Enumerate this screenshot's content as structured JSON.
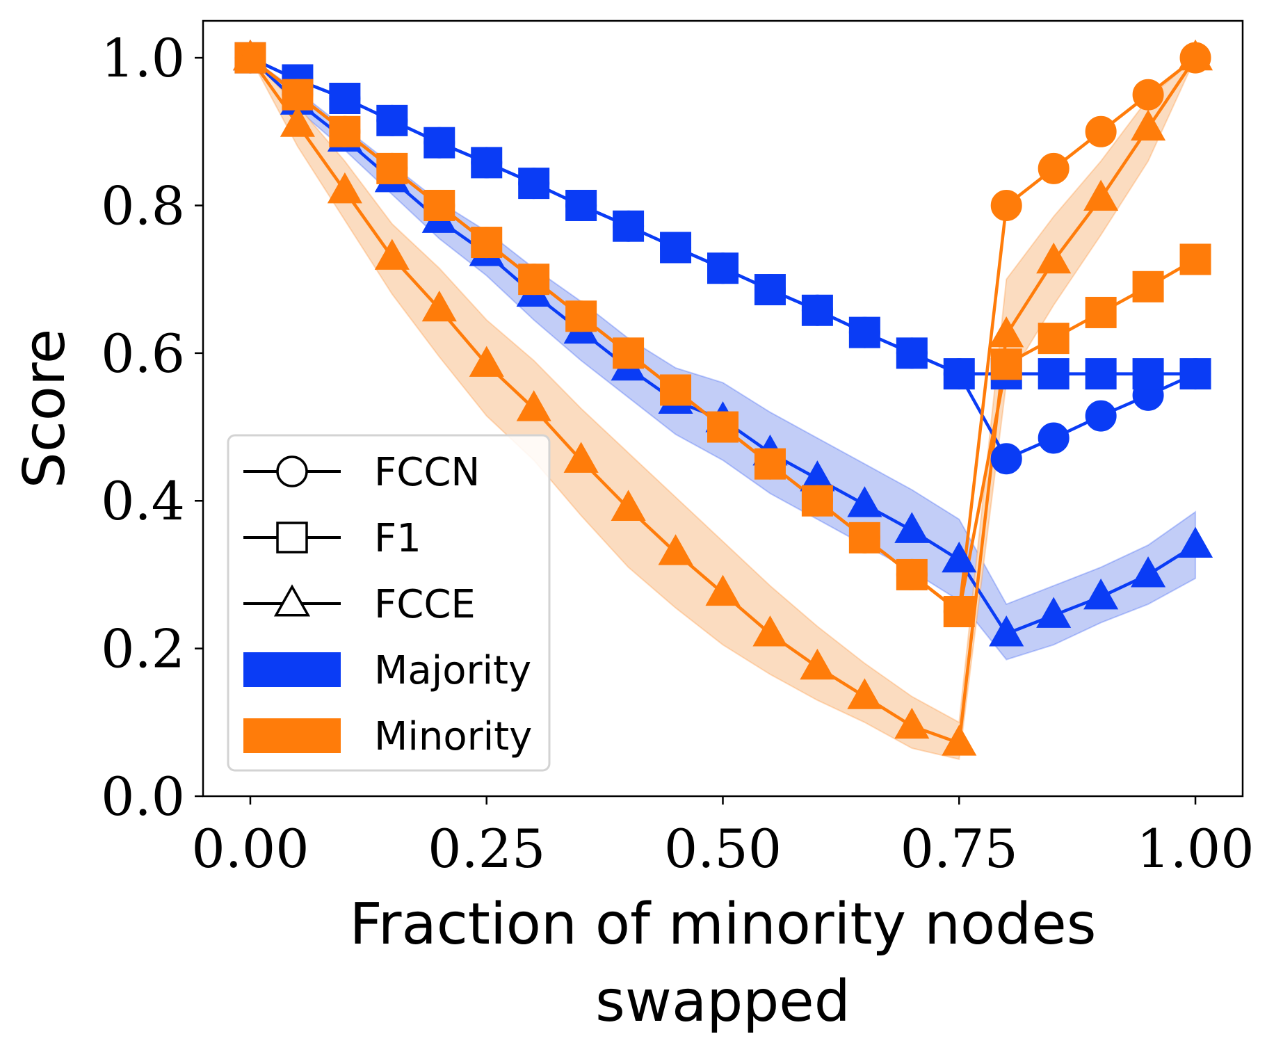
{
  "chart_data": {
    "type": "line",
    "title": "",
    "xlabel_lines": [
      "Fraction of minority nodes",
      "swapped"
    ],
    "ylabel": "Score",
    "xlim": [
      -0.05,
      1.05
    ],
    "ylim": [
      0.0,
      1.05
    ],
    "xticks": [
      0.0,
      0.25,
      0.5,
      0.75,
      1.0
    ],
    "xtick_labels": [
      "0.00",
      "0.25",
      "0.50",
      "0.75",
      "1.00"
    ],
    "yticks": [
      0.0,
      0.2,
      0.4,
      0.6,
      0.8,
      1.0
    ],
    "ytick_labels": [
      "0.0",
      "0.2",
      "0.4",
      "0.6",
      "0.8",
      "1.0"
    ],
    "grid": false,
    "legend_position": "lower-left",
    "colors": {
      "majority": "#0a3cf5",
      "minority": "#ff7c0a",
      "majority_band": "#c2cdf7",
      "minority_band": "#fbdcc0"
    },
    "x": [
      0.0,
      0.05,
      0.1,
      0.15,
      0.2,
      0.25,
      0.3,
      0.35,
      0.4,
      0.45,
      0.5,
      0.55,
      0.6,
      0.65,
      0.7,
      0.75,
      0.8,
      0.85,
      0.9,
      0.95,
      1.0
    ],
    "series": [
      {
        "name": "Majority FCCN",
        "group": "majority",
        "metric": "FCCN",
        "marker": "circle",
        "values": [
          1.0,
          0.97,
          0.945,
          0.915,
          0.885,
          0.858,
          0.83,
          0.8,
          0.772,
          0.743,
          0.715,
          0.686,
          0.658,
          0.628,
          0.6,
          0.572,
          0.457,
          0.485,
          0.515,
          0.543,
          0.572
        ]
      },
      {
        "name": "Majority F1",
        "group": "majority",
        "metric": "F1",
        "marker": "square",
        "values": [
          1.0,
          0.97,
          0.945,
          0.915,
          0.885,
          0.858,
          0.83,
          0.8,
          0.772,
          0.743,
          0.715,
          0.686,
          0.658,
          0.628,
          0.6,
          0.572,
          0.572,
          0.572,
          0.572,
          0.572,
          0.572
        ]
      },
      {
        "name": "Majority FCCE",
        "group": "majority",
        "metric": "FCCE",
        "marker": "triangle",
        "values": [
          1.0,
          0.94,
          0.89,
          0.835,
          0.78,
          0.735,
          0.68,
          0.63,
          0.58,
          0.535,
          0.51,
          0.465,
          0.43,
          0.395,
          0.36,
          0.32,
          0.22,
          0.245,
          0.27,
          0.3,
          0.34
        ],
        "band_lower": [
          1.0,
          0.93,
          0.875,
          0.815,
          0.755,
          0.705,
          0.645,
          0.59,
          0.54,
          0.49,
          0.455,
          0.41,
          0.375,
          0.34,
          0.305,
          0.265,
          0.185,
          0.205,
          0.235,
          0.26,
          0.295
        ],
        "band_upper": [
          1.0,
          0.955,
          0.905,
          0.855,
          0.805,
          0.765,
          0.715,
          0.67,
          0.62,
          0.58,
          0.56,
          0.52,
          0.485,
          0.45,
          0.415,
          0.375,
          0.26,
          0.285,
          0.31,
          0.34,
          0.385
        ]
      },
      {
        "name": "Minority FCCN",
        "group": "minority",
        "metric": "FCCN",
        "marker": "circle",
        "values": [
          1.0,
          0.95,
          0.9,
          0.85,
          0.8,
          0.75,
          0.7,
          0.65,
          0.6,
          0.55,
          0.5,
          0.45,
          0.4,
          0.35,
          0.3,
          0.25,
          0.8,
          0.85,
          0.9,
          0.95,
          1.0
        ]
      },
      {
        "name": "Minority F1",
        "group": "minority",
        "metric": "F1",
        "marker": "square",
        "values": [
          1.0,
          0.95,
          0.9,
          0.85,
          0.8,
          0.75,
          0.7,
          0.65,
          0.6,
          0.55,
          0.5,
          0.45,
          0.4,
          0.35,
          0.3,
          0.25,
          0.585,
          0.62,
          0.655,
          0.69,
          0.727
        ]
      },
      {
        "name": "Minority FCCE",
        "group": "minority",
        "metric": "FCCE",
        "marker": "triangle",
        "values": [
          1.0,
          0.91,
          0.82,
          0.73,
          0.66,
          0.585,
          0.525,
          0.455,
          0.39,
          0.33,
          0.275,
          0.22,
          0.175,
          0.135,
          0.095,
          0.072,
          0.625,
          0.725,
          0.81,
          0.905,
          1.0
        ],
        "band_lower": [
          1.0,
          0.88,
          0.78,
          0.68,
          0.595,
          0.515,
          0.455,
          0.38,
          0.31,
          0.255,
          0.205,
          0.165,
          0.13,
          0.1,
          0.065,
          0.05,
          0.56,
          0.665,
          0.76,
          0.86,
          1.0
        ],
        "band_upper": [
          1.0,
          0.935,
          0.86,
          0.775,
          0.715,
          0.645,
          0.59,
          0.525,
          0.465,
          0.405,
          0.345,
          0.285,
          0.23,
          0.18,
          0.135,
          0.1,
          0.7,
          0.785,
          0.86,
          0.945,
          1.0
        ]
      }
    ],
    "legend": [
      {
        "label": "FCCN",
        "kind": "marker",
        "marker": "circle"
      },
      {
        "label": "F1",
        "kind": "marker",
        "marker": "square"
      },
      {
        "label": "FCCE",
        "kind": "marker",
        "marker": "triangle"
      },
      {
        "label": "Majority",
        "kind": "patch",
        "group": "majority"
      },
      {
        "label": "Minority",
        "kind": "patch",
        "group": "minority"
      }
    ]
  }
}
